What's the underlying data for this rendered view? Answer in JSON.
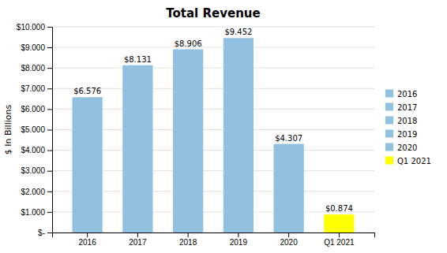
{
  "chart_data": {
    "type": "bar",
    "title": "Total Revenue",
    "categories": [
      "2016",
      "2017",
      "2018",
      "2019",
      "2020",
      "Q1 2021"
    ],
    "values": [
      6.576,
      8.131,
      8.906,
      9.452,
      4.307,
      0.874
    ],
    "value_labels": [
      "$6.576",
      "$8.131",
      "$8.906",
      "$9.452",
      "$4.307",
      "$0.874"
    ],
    "colors": [
      "#92C0E0",
      "#92C0E0",
      "#92C0E0",
      "#92C0E0",
      "#92C0E0",
      "#FFFF00"
    ],
    "ylabel": "$ In Billions",
    "ylim": [
      0,
      10
    ],
    "yticks": [
      {
        "value": 0,
        "label": "$-"
      },
      {
        "value": 1,
        "label": "$1.000"
      },
      {
        "value": 2,
        "label": "$2.000"
      },
      {
        "value": 3,
        "label": "$3.000"
      },
      {
        "value": 4,
        "label": "$4.000"
      },
      {
        "value": 5,
        "label": "$5.000"
      },
      {
        "value": 6,
        "label": "$6.000"
      },
      {
        "value": 7,
        "label": "$7.000"
      },
      {
        "value": 8,
        "label": "$8.000"
      },
      {
        "value": 9,
        "label": "$9.000"
      },
      {
        "value": 10,
        "label": "$10.000"
      }
    ],
    "grid": true,
    "legend": "right",
    "data_labels": true
  }
}
